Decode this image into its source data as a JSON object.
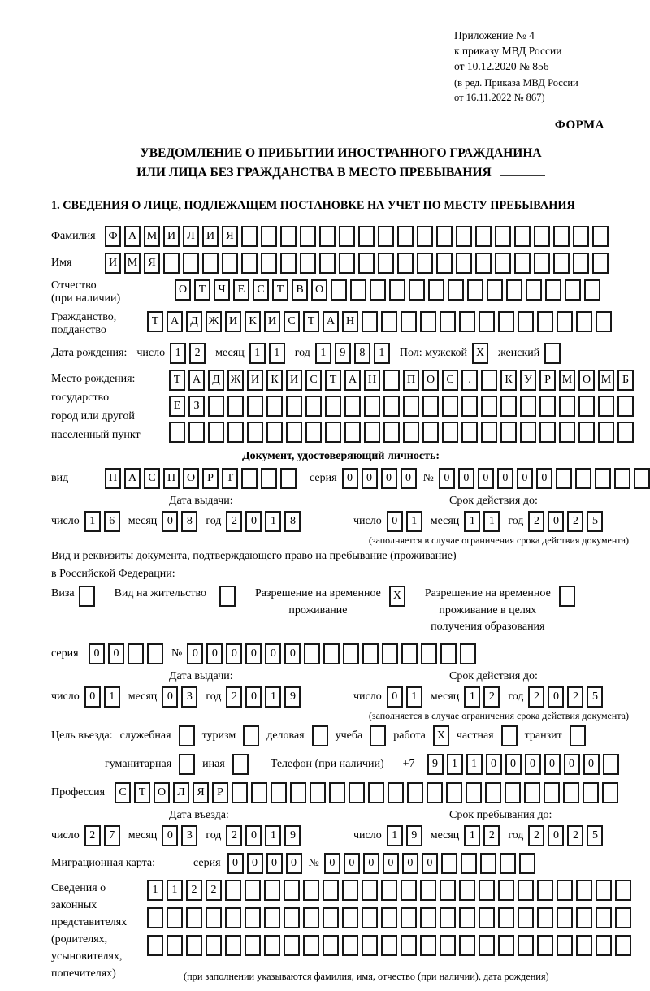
{
  "header": {
    "ref_lines": [
      "Приложение № 4",
      "к приказу МВД России",
      "от 10.12.2020 № 856"
    ],
    "ed_lines": [
      "(в ред. Приказа МВД России",
      "от 16.11.2022 № 867)"
    ],
    "forma_label": "ФОРМА"
  },
  "title": {
    "line1": "УВЕДОМЛЕНИЕ О ПРИБЫТИИ ИНОСТРАННОГО ГРАЖДАНИНА",
    "line2": "ИЛИ ЛИЦА БЕЗ ГРАЖДАНСТВА В МЕСТО ПРЕБЫВАНИЯ"
  },
  "section1_heading": "1. СВЕДЕНИЯ О ЛИЦЕ, ПОДЛЕЖАЩЕМ ПОСТАНОВКЕ НА УЧЕТ ПО МЕСТУ ПРЕБЫВАНИЯ",
  "labels": {
    "day": "число",
    "month": "месяц",
    "year": "год",
    "seriya": "серия",
    "number": "№",
    "vid": "вид",
    "issue_date": "Дата выдачи:",
    "valid_until": "Срок действия до:",
    "entry_date": "Дата въезда:",
    "stay_until": "Срок пребывания до:",
    "restriction_note": "(заполняется в случае ограничения срока действия документа)"
  },
  "surname": {
    "label": "Фамилия",
    "boxes": {
      "chars": "ФАМИЛИЯ",
      "total": 26
    }
  },
  "firstname": {
    "label": "Имя",
    "boxes": {
      "chars": "ИМЯ",
      "total": 26
    }
  },
  "patronymic": {
    "label1": "Отчество",
    "label2": "(при наличии)",
    "boxes": {
      "chars": "ОТЧЕСТВО",
      "total": 22
    }
  },
  "citizenship": {
    "label1": "Гражданство,",
    "label2": "подданство",
    "boxes": {
      "chars": "ТАДЖИКИСТАН",
      "total": 24
    }
  },
  "birth": {
    "label": "Дата рождения:",
    "day": {
      "chars": "12",
      "total": 2
    },
    "month": {
      "chars": "11",
      "total": 2
    },
    "year": {
      "chars": "1981",
      "total": 4
    },
    "sex_label": "Пол: мужской",
    "male_box": {
      "chars": "X",
      "total": 1
    },
    "female_label": "женский",
    "female_box": {
      "chars": "",
      "total": 1
    }
  },
  "birthplace": {
    "label_lines": [
      "Место рождения:",
      "государство",
      "город или другой",
      "населенный пункт"
    ],
    "row1": {
      "chars": "ТАДЖИКИСТАН ПОС. КУРМОМБ",
      "total": 24
    },
    "row2": {
      "chars": "ЕЗ",
      "total": 24
    },
    "row3": {
      "chars": "",
      "total": 24
    }
  },
  "identity_doc": {
    "heading": "Документ, удостоверяющий личность:",
    "vid_boxes": {
      "chars": "ПАСПОРТ",
      "total": 10
    },
    "seriya_boxes": {
      "chars": "0000",
      "total": 4
    },
    "number_boxes": {
      "chars": "000000",
      "total": 11
    },
    "issue": {
      "day": {
        "chars": "16",
        "total": 2
      },
      "month": {
        "chars": "08",
        "total": 2
      },
      "year": {
        "chars": "2018",
        "total": 4
      }
    },
    "valid": {
      "day": {
        "chars": "01",
        "total": 2
      },
      "month": {
        "chars": "11",
        "total": 2
      },
      "year": {
        "chars": "2025",
        "total": 4
      }
    }
  },
  "residence_doc": {
    "intro1": "Вид и реквизиты документа, подтверждающего право на пребывание (проживание)",
    "intro2": "в Российской Федерации:",
    "options": [
      {
        "lines": [
          "Виза"
        ],
        "box": {
          "chars": "",
          "total": 1
        }
      },
      {
        "lines": [
          "Вид на жительство"
        ],
        "box": {
          "chars": "",
          "total": 1
        }
      },
      {
        "lines": [
          "Разрешение на временное",
          "проживание"
        ],
        "box": {
          "chars": "X",
          "total": 1
        }
      },
      {
        "lines": [
          "Разрешение на временное",
          "проживание в целях",
          "получения образования"
        ],
        "box": {
          "chars": "",
          "total": 1
        }
      }
    ],
    "seriya_boxes": {
      "chars": "00",
      "total": 4
    },
    "number_boxes": {
      "chars": "000000",
      "total": 15
    },
    "issue": {
      "day": {
        "chars": "01",
        "total": 2
      },
      "month": {
        "chars": "03",
        "total": 2
      },
      "year": {
        "chars": "2019",
        "total": 4
      }
    },
    "valid": {
      "day": {
        "chars": "01",
        "total": 2
      },
      "month": {
        "chars": "12",
        "total": 2
      },
      "year": {
        "chars": "2025",
        "total": 4
      }
    }
  },
  "purpose": {
    "label": "Цель въезда:",
    "row1": [
      {
        "label": "служебная",
        "box": {
          "chars": "",
          "total": 1
        }
      },
      {
        "label": "туризм",
        "box": {
          "chars": "",
          "total": 1
        }
      },
      {
        "label": "деловая",
        "box": {
          "chars": "",
          "total": 1
        }
      },
      {
        "label": "учеба",
        "box": {
          "chars": "",
          "total": 1
        }
      },
      {
        "label": "работа",
        "box": {
          "chars": "X",
          "total": 1
        }
      },
      {
        "label": "частная",
        "box": {
          "chars": "",
          "total": 1
        }
      },
      {
        "label": "транзит",
        "box": {
          "chars": "",
          "total": 1
        }
      }
    ],
    "row2": [
      {
        "label": "гуманитарная",
        "box": {
          "chars": "",
          "total": 1
        }
      },
      {
        "label": "иная",
        "box": {
          "chars": "",
          "total": 1
        }
      }
    ],
    "phone_label": "Телефон (при наличии)",
    "phone_prefix": "+7",
    "phone_boxes": {
      "chars": "911000000",
      "total": 10
    }
  },
  "profession": {
    "label": "Профессия",
    "boxes": {
      "chars": "СТОЛЯР",
      "total": 26
    }
  },
  "entry": {
    "issue": {
      "day": {
        "chars": "27",
        "total": 2
      },
      "month": {
        "chars": "03",
        "total": 2
      },
      "year": {
        "chars": "2019",
        "total": 4
      }
    },
    "valid": {
      "day": {
        "chars": "19",
        "total": 2
      },
      "month": {
        "chars": "12",
        "total": 2
      },
      "year": {
        "chars": "2025",
        "total": 4
      }
    }
  },
  "migration_card": {
    "label": "Миграционная карта:",
    "seriya_boxes": {
      "chars": "0000",
      "total": 4
    },
    "number_boxes": {
      "chars": "000000",
      "total": 11
    }
  },
  "representatives": {
    "label_lines": [
      "Сведения о",
      "законных",
      "представителях",
      "(родителях,",
      "усыновителях,",
      "попечителях)"
    ],
    "row1": {
      "chars": "1122",
      "total": 25
    },
    "row2": {
      "chars": "",
      "total": 25
    },
    "row3": {
      "chars": "",
      "total": 25
    },
    "note": "(при заполнении указываются фамилия, имя, отчество (при наличии), дата рождения)"
  }
}
